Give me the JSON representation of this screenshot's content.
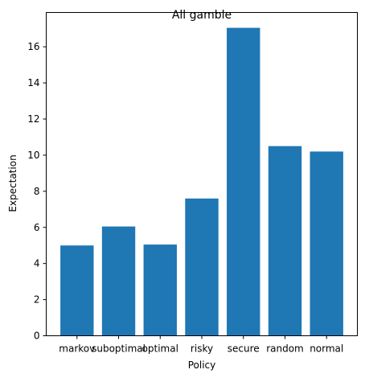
{
  "chart_data": {
    "type": "bar",
    "title": "All gamble",
    "xlabel": "Policy",
    "ylabel": "Expectation",
    "categories": [
      "markov",
      "suboptimal",
      "optimal",
      "risky",
      "secure",
      "random",
      "normal"
    ],
    "values": [
      5.0,
      6.05,
      5.05,
      7.6,
      17.05,
      10.5,
      10.2
    ],
    "ylim": [
      0,
      17.9
    ],
    "yticks": [
      0,
      2,
      4,
      6,
      8,
      10,
      12,
      14,
      16
    ],
    "grid": false,
    "legend": "none",
    "bar_color": "#1f77b4"
  }
}
